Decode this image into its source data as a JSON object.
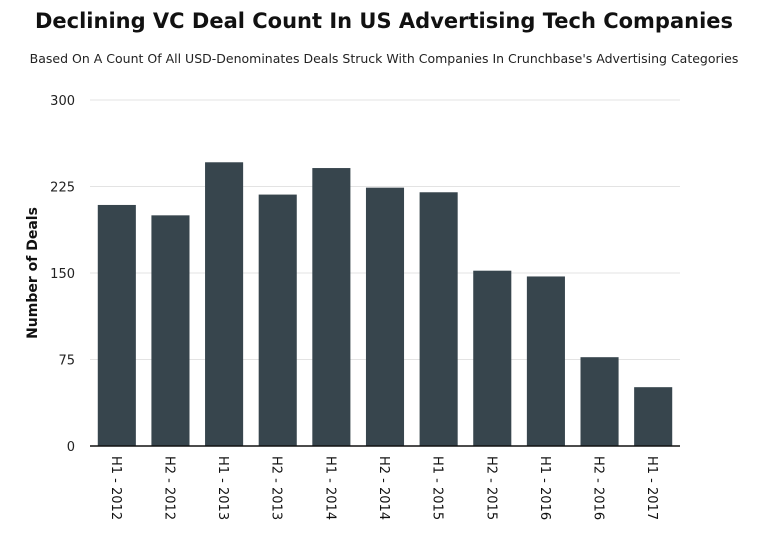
{
  "chart_data": {
    "type": "bar",
    "title": "Declining VC Deal Count In US Advertising Tech Companies",
    "subtitle": "Based On A Count Of All USD-Denominates Deals Struck With Companies In Crunchbase's Advertising Categories",
    "xlabel": "",
    "ylabel": "Number of Deals",
    "ylim": [
      0,
      300
    ],
    "yticks": [
      0,
      75,
      150,
      225,
      300
    ],
    "grid": true,
    "categories": [
      "H1 - 2012",
      "H2 - 2012",
      "H1 - 2013",
      "H2 - 2013",
      "H1 - 2014",
      "H2 - 2014",
      "H1 - 2015",
      "H2 - 2015",
      "H1 - 2016",
      "H2 - 2016",
      "H1 - 2017"
    ],
    "values": [
      209,
      200,
      246,
      218,
      241,
      224,
      220,
      152,
      147,
      77,
      51
    ],
    "bar_color": "#37454d"
  }
}
